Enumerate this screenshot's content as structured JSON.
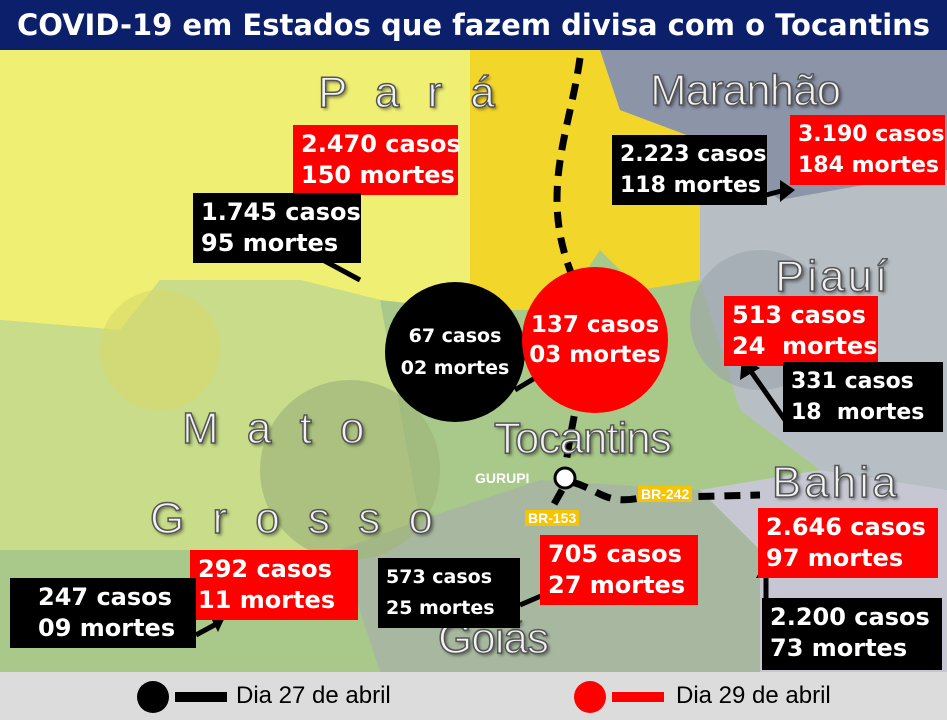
{
  "title": "COVID-19 em Estados que fazem divisa com o Tocantins",
  "states": {
    "para": "P a r á",
    "maranhao": "Maranhão",
    "piaui": "Piauí",
    "bahia": "Bahia",
    "mato": "M a t o",
    "grosso": "G r o s s o",
    "goias": "Goiás",
    "tocantins": "Tocantins"
  },
  "boxes": {
    "para": {
      "apr27": [
        "1.745 casos",
        "95 mortes"
      ],
      "apr29": [
        "2.470 casos",
        "150 mortes"
      ]
    },
    "maranhao": {
      "apr27": [
        "2.223 casos",
        "118 mortes"
      ],
      "apr29": [
        "3.190 casos",
        "184 mortes"
      ]
    },
    "piaui": {
      "apr27": [
        "331 casos",
        "18  mortes"
      ],
      "apr29": [
        "513 casos",
        "24  mortes"
      ]
    },
    "bahia": {
      "apr27": [
        "2.200 casos",
        "73 mortes"
      ],
      "apr29": [
        "2.646 casos",
        "97 mortes"
      ]
    },
    "mato_grosso": {
      "apr27": [
        "247 casos",
        "09 mortes"
      ],
      "apr29": [
        "292 casos",
        "11 mortes"
      ]
    },
    "goias": {
      "apr27": [
        "573 casos",
        "25 mortes"
      ],
      "apr29": [
        "705 casos",
        "27 mortes"
      ]
    },
    "tocantins": {
      "apr27": [
        "67 casos",
        "02 mortes"
      ],
      "apr29": [
        "137 casos",
        "03 mortes"
      ]
    }
  },
  "roads": {
    "br242": "BR-242",
    "br153": "BR-153",
    "city": "GURUPI"
  },
  "legend": {
    "apr27": "Dia 27 de abril",
    "apr29": "Dia 29 de abril"
  }
}
